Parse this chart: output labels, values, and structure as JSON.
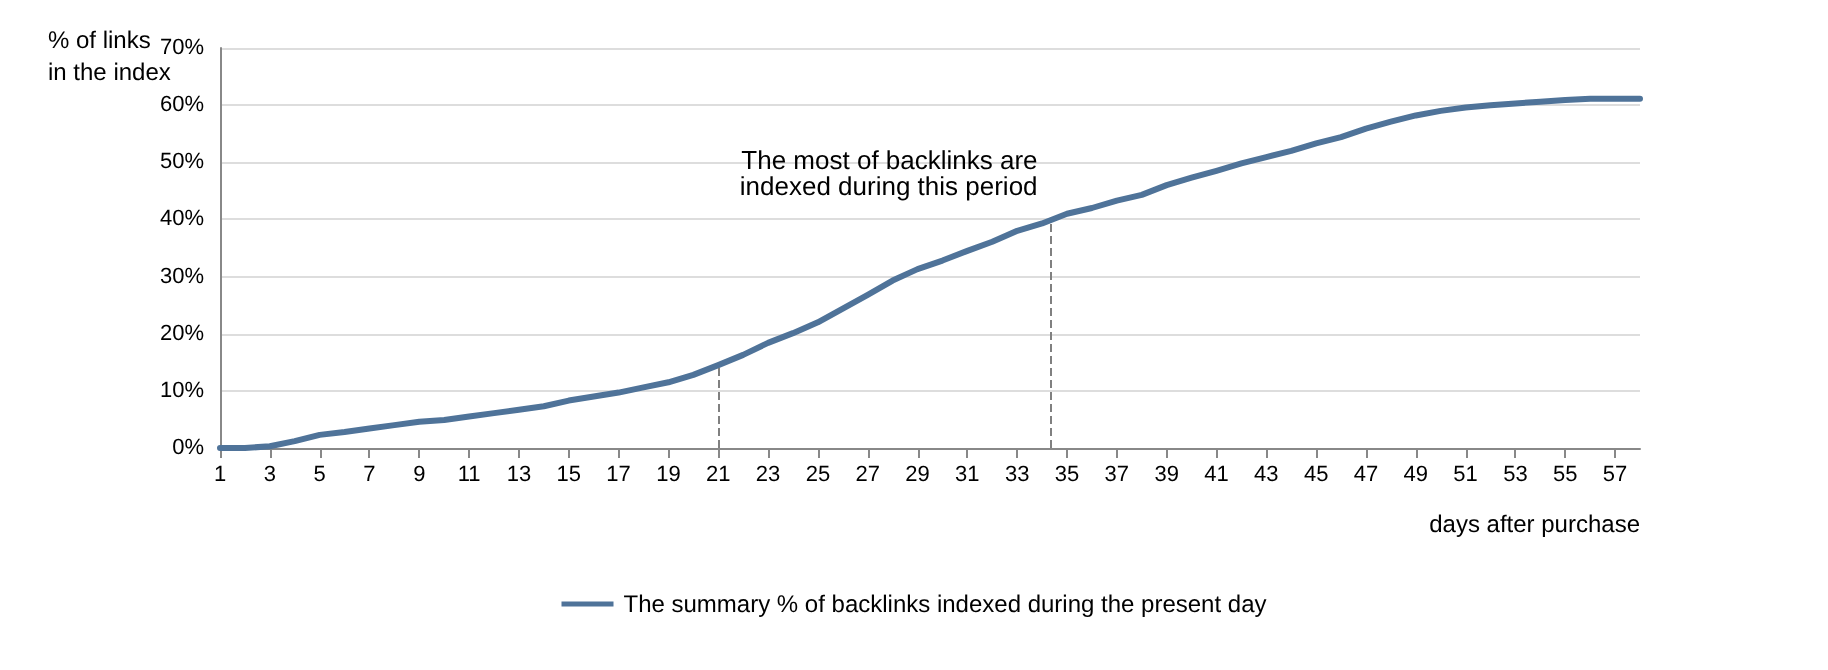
{
  "chart_data": {
    "type": "line",
    "ylabel": "% of links\nin the index",
    "xlabel": "days after purchase",
    "x": [
      1,
      2,
      3,
      4,
      5,
      6,
      7,
      8,
      9,
      10,
      11,
      12,
      13,
      14,
      15,
      16,
      17,
      18,
      19,
      20,
      21,
      22,
      23,
      24,
      25,
      26,
      27,
      28,
      29,
      30,
      31,
      32,
      33,
      34,
      35,
      36,
      37,
      38,
      39,
      40,
      41,
      42,
      43,
      44,
      45,
      46,
      47,
      48,
      49,
      50,
      51,
      52,
      53,
      54,
      55,
      56,
      57,
      58
    ],
    "series": [
      {
        "name": "The summary % of backlinks indexed during the present day",
        "color": "#4f7399",
        "values": [
          0,
          0,
          0.3,
          1.2,
          2.3,
          2.8,
          3.4,
          4.0,
          4.6,
          4.9,
          5.5,
          6.1,
          6.7,
          7.3,
          8.3,
          9.0,
          9.7,
          10.6,
          11.5,
          12.8,
          14.5,
          16.3,
          18.4,
          20.1,
          22.0,
          24.4,
          26.8,
          29.3,
          31.3,
          32.8,
          34.5,
          36.1,
          38.0,
          39.3,
          41.0,
          42.0,
          43.3,
          44.3,
          46.0,
          47.3,
          48.5,
          49.8,
          50.9,
          52.0,
          53.3,
          54.4,
          55.9,
          57.1,
          58.2,
          59.0,
          59.6,
          60.0,
          60.3,
          60.6,
          60.9,
          61.1,
          61.1,
          61.1
        ]
      }
    ],
    "xlim": [
      1,
      58
    ],
    "xticks": [
      1,
      3,
      5,
      7,
      9,
      11,
      13,
      15,
      17,
      19,
      21,
      23,
      25,
      27,
      29,
      31,
      33,
      35,
      37,
      39,
      41,
      43,
      45,
      47,
      49,
      51,
      53,
      55,
      57
    ],
    "ylim": [
      0,
      70
    ],
    "yticks": [
      {
        "value": 0,
        "label": "0%"
      },
      {
        "value": 10,
        "label": "10%"
      },
      {
        "value": 20,
        "label": "20%"
      },
      {
        "value": 30,
        "label": "30%"
      },
      {
        "value": 40,
        "label": "40%"
      },
      {
        "value": 50,
        "label": "50%"
      },
      {
        "value": 60,
        "label": "60%"
      },
      {
        "value": 70,
        "label": "70%"
      }
    ],
    "ref_lines": [
      {
        "axis": "x",
        "value": 21,
        "color": "#808080",
        "line_style": "dashed"
      },
      {
        "axis": "x",
        "value": 34.3,
        "color": "#808080",
        "line_style": "dashed"
      }
    ],
    "annotations": [
      {
        "text": "The most of backlinks are\nindexed during this period",
        "x": 34.3,
        "y": 40
      }
    ],
    "grid": "y",
    "legend": "bottom",
    "marker": "none",
    "line_style": "solid"
  }
}
